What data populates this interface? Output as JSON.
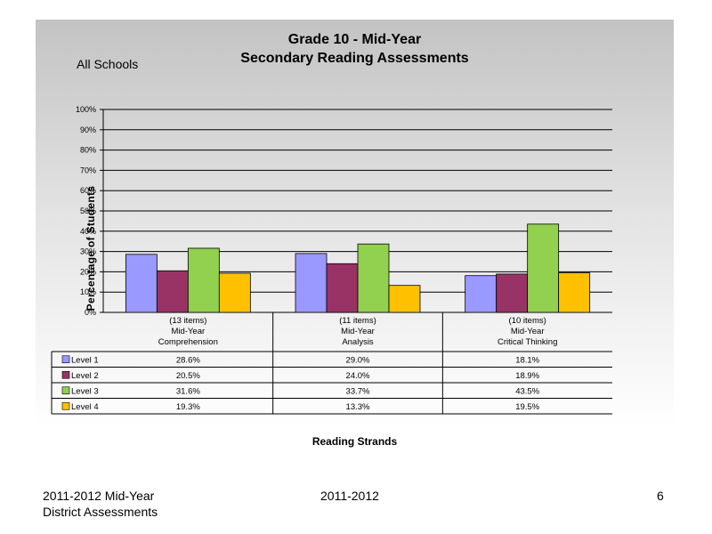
{
  "slide": {
    "title_line1": "Grade 10 - Mid-Year",
    "title_line2": "Secondary Reading Assessments",
    "subtitle": "All Schools",
    "footer_left_line1": "2011-2012  Mid-Year",
    "footer_left_line2": "District Assessments",
    "footer_center": "2011-2012",
    "footer_page": "6"
  },
  "chart_data": {
    "type": "bar",
    "title": "Grade 10 - Mid-Year Secondary Reading Assessments",
    "ylabel": "Percentage of Students",
    "xlabel": "Reading Strands",
    "ylim": [
      0,
      100
    ],
    "yticks": [
      "0%",
      "10%",
      "20%",
      "30%",
      "40%",
      "50%",
      "60%",
      "70%",
      "80%",
      "90%",
      "100%"
    ],
    "grid": true,
    "categories": [
      [
        "(13 items)",
        "Mid-Year",
        "Comprehension"
      ],
      [
        "(11 items)",
        "Mid-Year",
        "Analysis"
      ],
      [
        "(10 items)",
        "Mid-Year",
        "Critical Thinking"
      ]
    ],
    "series": [
      {
        "name": "Level 1",
        "color": "#9999ff",
        "values": [
          28.6,
          29.0,
          18.1
        ],
        "labels": [
          "28.6%",
          "29.0%",
          "18.1%"
        ]
      },
      {
        "name": "Level 2",
        "color": "#993366",
        "values": [
          20.5,
          24.0,
          18.9
        ],
        "labels": [
          "20.5%",
          "24.0%",
          "18.9%"
        ]
      },
      {
        "name": "Level 3",
        "color": "#92d050",
        "values": [
          31.6,
          33.7,
          43.5
        ],
        "labels": [
          "31.6%",
          "33.7%",
          "43.5%"
        ]
      },
      {
        "name": "Level 4",
        "color": "#ffc000",
        "values": [
          19.3,
          13.3,
          19.5
        ],
        "labels": [
          "19.3%",
          "13.3%",
          "19.5%"
        ]
      }
    ]
  }
}
